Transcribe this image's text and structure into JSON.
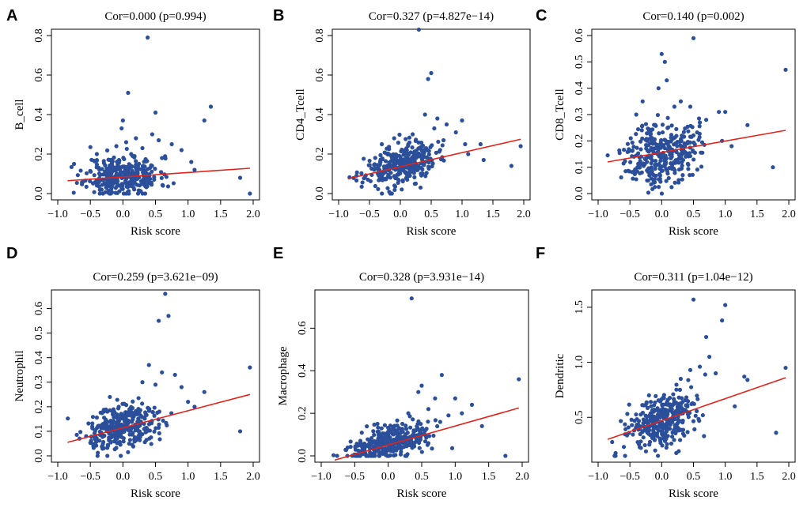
{
  "colors": {
    "points": "#2b4f9a",
    "regression_line": "#e2231a",
    "axes": "#000000"
  },
  "chart_data": [
    {
      "type": "scatter",
      "panel": "A",
      "title": "Cor=0.000 (p=0.994)",
      "xlabel": "Risk score",
      "ylabel": "B_cell",
      "xlim": [
        -1.0,
        2.0
      ],
      "ylim": [
        0.0,
        0.8
      ],
      "xticks": [
        "−1.0",
        "−0.5",
        "0.0",
        "0.5",
        "1.0",
        "1.5",
        "2.0"
      ],
      "yticks": [
        "0.0",
        "0.2",
        "0.4",
        "0.6",
        "0.8"
      ],
      "regression": {
        "x": [
          -0.85,
          1.95
        ],
        "y": [
          0.065,
          0.128
        ]
      },
      "points": {
        "x": [
          0.38,
          0.08,
          0.5,
          1.35,
          1.25,
          0.0,
          -0.02,
          0.45,
          0.2,
          0.05,
          -0.1,
          0.55,
          0.75,
          0.9,
          1.05,
          1.1,
          1.8,
          1.95,
          0.6,
          -0.4,
          -0.75,
          0.3,
          0.15,
          -0.2
        ],
        "y": [
          0.79,
          0.51,
          0.41,
          0.44,
          0.37,
          0.37,
          0.33,
          0.3,
          0.28,
          0.26,
          0.24,
          0.27,
          0.25,
          0.22,
          0.16,
          0.12,
          0.08,
          0.0,
          0.18,
          0.2,
          0.15,
          0.23,
          0.19,
          0.17
        ]
      },
      "cloud": {
        "n": 330,
        "x_mean": 0.0,
        "x_sd": 0.28,
        "y_base": 0.09,
        "slope": 0.0,
        "y_sd": 0.05,
        "y_min": 0.0,
        "seed": 11
      }
    },
    {
      "type": "scatter",
      "panel": "B",
      "title": "Cor=0.327 (p=4.827e−14)",
      "xlabel": "Risk score",
      "ylabel": "CD4_Tcell",
      "xlim": [
        -1.0,
        2.0
      ],
      "ylim": [
        0.0,
        0.8
      ],
      "xticks": [
        "−1.0",
        "−0.5",
        "0.0",
        "0.5",
        "1.0",
        "1.5",
        "2.0"
      ],
      "yticks": [
        "0.0",
        "0.2",
        "0.4",
        "0.6",
        "0.8"
      ],
      "regression": {
        "x": [
          -0.85,
          1.95
        ],
        "y": [
          0.075,
          0.275
        ]
      },
      "points": {
        "x": [
          0.3,
          0.5,
          0.45,
          1.0,
          0.75,
          1.3,
          1.95,
          1.8,
          1.35,
          1.05,
          0.6,
          0.9,
          0.2,
          -0.3,
          0.55,
          0.4,
          1.1,
          0.7,
          -0.1
        ],
        "y": [
          0.83,
          0.61,
          0.58,
          0.37,
          0.35,
          0.25,
          0.24,
          0.14,
          0.17,
          0.25,
          0.38,
          0.31,
          0.3,
          0.25,
          0.33,
          0.4,
          0.2,
          0.27,
          0.28
        ]
      },
      "cloud": {
        "n": 330,
        "x_mean": 0.0,
        "x_sd": 0.28,
        "y_base": 0.145,
        "slope": 0.07,
        "y_sd": 0.05,
        "y_min": 0.0,
        "seed": 23
      }
    },
    {
      "type": "scatter",
      "panel": "C",
      "title": "Cor=0.140 (p=0.002)",
      "xlabel": "Risk score",
      "ylabel": "CD8_Tcell",
      "xlim": [
        -1.0,
        2.0
      ],
      "ylim": [
        0.0,
        0.6
      ],
      "xticks": [
        "−1.0",
        "−0.5",
        "0.0",
        "0.5",
        "1.0",
        "1.5",
        "2.0"
      ],
      "yticks": [
        "0.0",
        "0.1",
        "0.2",
        "0.3",
        "0.4",
        "0.5",
        "0.6"
      ],
      "regression": {
        "x": [
          -0.85,
          1.95
        ],
        "y": [
          0.12,
          0.24
        ]
      },
      "points": {
        "x": [
          0.5,
          0.0,
          0.05,
          0.08,
          -0.05,
          1.95,
          1.75,
          1.35,
          0.9,
          1.0,
          0.45,
          0.3,
          0.7,
          -0.4,
          -0.3,
          0.2,
          0.6,
          0.95,
          1.1
        ],
        "y": [
          0.59,
          0.53,
          0.5,
          0.43,
          0.4,
          0.47,
          0.1,
          0.26,
          0.31,
          0.31,
          0.33,
          0.35,
          0.28,
          0.3,
          0.35,
          0.33,
          0.27,
          0.2,
          0.18
        ]
      },
      "cloud": {
        "n": 330,
        "x_mean": 0.0,
        "x_sd": 0.28,
        "y_base": 0.155,
        "slope": 0.04,
        "y_sd": 0.06,
        "y_min": 0.0,
        "seed": 37
      }
    },
    {
      "type": "scatter",
      "panel": "D",
      "title": "Cor=0.259 (p=3.621e−09)",
      "xlabel": "Risk score",
      "ylabel": "Neutrophil",
      "xlim": [
        -1.0,
        2.0
      ],
      "ylim": [
        0.0,
        0.65
      ],
      "xticks": [
        "−1.0",
        "−0.5",
        "0.0",
        "0.5",
        "1.0",
        "1.5",
        "2.0"
      ],
      "yticks": [
        "0.0",
        "0.1",
        "0.2",
        "0.3",
        "0.4",
        "0.5",
        "0.6"
      ],
      "regression": {
        "x": [
          -0.85,
          1.95
        ],
        "y": [
          0.055,
          0.25
        ]
      },
      "points": {
        "x": [
          0.65,
          0.7,
          0.55,
          0.4,
          1.95,
          1.25,
          0.8,
          0.9,
          1.8,
          1.1,
          0.6,
          0.3,
          0.5,
          -0.2,
          1.0
        ],
        "y": [
          0.66,
          0.57,
          0.55,
          0.37,
          0.36,
          0.26,
          0.33,
          0.28,
          0.1,
          0.2,
          0.34,
          0.3,
          0.29,
          0.24,
          0.22
        ]
      },
      "cloud": {
        "n": 330,
        "x_mean": 0.0,
        "x_sd": 0.28,
        "y_base": 0.115,
        "slope": 0.06,
        "y_sd": 0.045,
        "y_min": 0.0,
        "seed": 51
      }
    },
    {
      "type": "scatter",
      "panel": "E",
      "title": "Cor=0.328 (p=3.931e−14)",
      "xlabel": "Risk score",
      "ylabel": "Macrophage",
      "xlim": [
        -1.0,
        2.0
      ],
      "ylim": [
        0.0,
        0.75
      ],
      "xticks": [
        "−1.0",
        "−0.5",
        "0.0",
        "0.5",
        "1.0",
        "1.5",
        "2.0"
      ],
      "yticks": [
        "0.0",
        "0.2",
        "0.4",
        "0.6"
      ],
      "regression": {
        "x": [
          -0.8,
          1.95
        ],
        "y": [
          -0.02,
          0.225
        ]
      },
      "points": {
        "x": [
          0.35,
          0.8,
          1.95,
          0.5,
          0.45,
          0.7,
          1.0,
          1.1,
          1.25,
          1.75,
          0.6,
          0.3,
          0.9,
          1.4
        ],
        "y": [
          0.74,
          0.38,
          0.36,
          0.33,
          0.3,
          0.27,
          0.27,
          0.2,
          0.24,
          0.0,
          0.22,
          0.2,
          0.19,
          0.14
        ]
      },
      "cloud": {
        "n": 330,
        "x_mean": 0.0,
        "x_sd": 0.28,
        "y_base": 0.055,
        "slope": 0.07,
        "y_sd": 0.04,
        "y_min": 0.0,
        "seed": 67
      }
    },
    {
      "type": "scatter",
      "panel": "F",
      "title": "Cor=0.311 (p=1.04e−12)",
      "xlabel": "Risk score",
      "ylabel": "Dendritic",
      "xlim": [
        -1.0,
        2.0
      ],
      "ylim": [
        0.15,
        1.6
      ],
      "xticks": [
        "−1.0",
        "−0.5",
        "0.0",
        "0.5",
        "1.0",
        "1.5",
        "2.0"
      ],
      "yticks": [
        "0.5",
        "1.0",
        "1.5"
      ],
      "regression": {
        "x": [
          -0.85,
          1.95
        ],
        "y": [
          0.3,
          0.86
        ]
      },
      "points": {
        "x": [
          0.5,
          1.0,
          0.95,
          0.75,
          0.7,
          1.95,
          1.8,
          1.3,
          1.35,
          1.15,
          0.6,
          0.45,
          0.3,
          -0.2,
          0.85
        ],
        "y": [
          1.57,
          1.52,
          1.38,
          1.05,
          1.23,
          0.95,
          0.36,
          0.87,
          0.84,
          0.6,
          0.96,
          0.93,
          0.85,
          0.7,
          0.9
        ]
      },
      "cloud": {
        "n": 330,
        "x_mean": 0.0,
        "x_sd": 0.28,
        "y_base": 0.47,
        "slope": 0.17,
        "y_sd": 0.12,
        "y_min": 0.15,
        "seed": 83
      }
    }
  ]
}
